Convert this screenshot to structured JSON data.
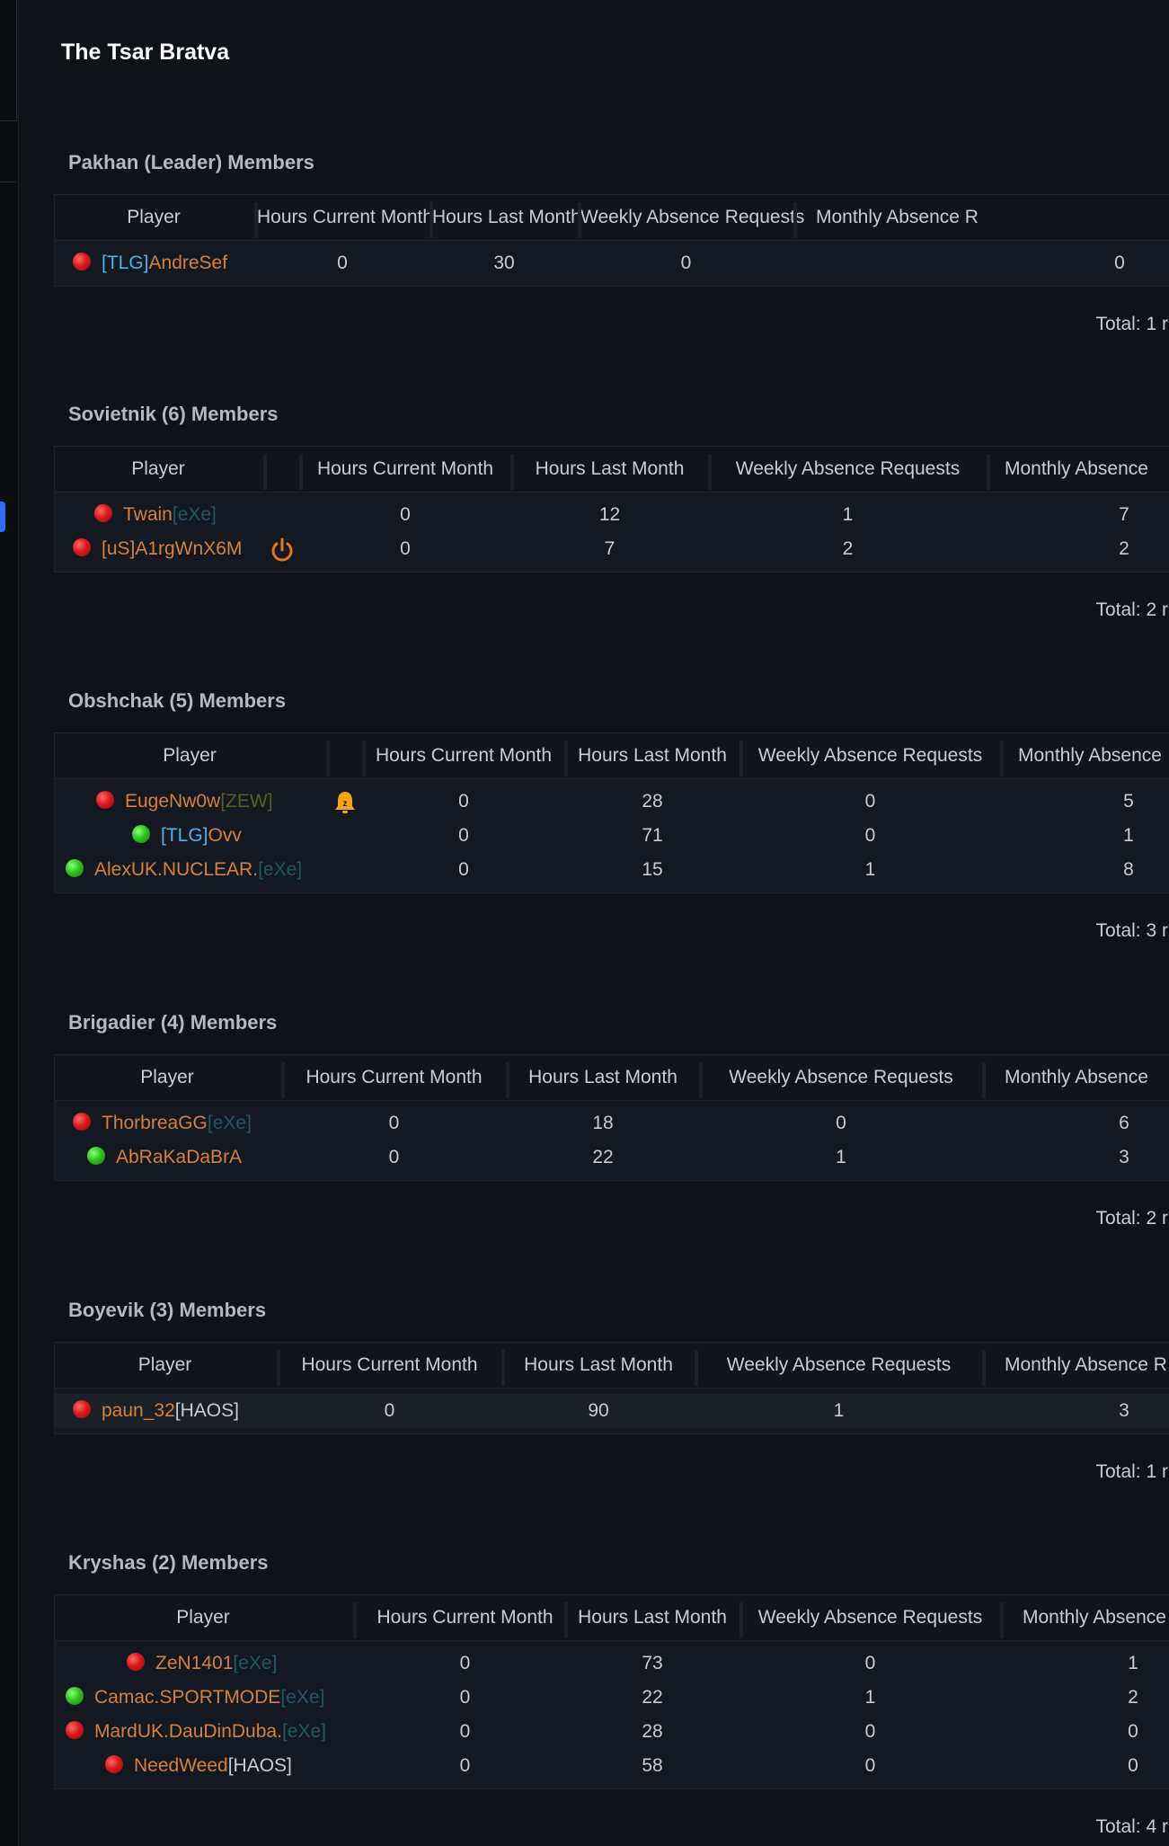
{
  "page_title": "The Tsar Bratva",
  "columns": {
    "player": "Player",
    "hours_current": "Hours Current Month",
    "hours_last": "Hours Last Month",
    "weekly": "Weekly Absence Requests",
    "monthly": "Monthly Absence"
  },
  "sections": [
    {
      "title": "Pakhan (Leader) Members",
      "monthly_header": "Monthly Absence R",
      "total": "Total: 1 r",
      "rows": [
        {
          "status": "red",
          "tag_pre": "[TLG]",
          "tag_pre_color": "blue",
          "name": "AndreSef",
          "tag_post": "",
          "tag_post_color": "",
          "current": "0",
          "last": "30",
          "weekly": "0",
          "monthly": "0",
          "icon": ""
        }
      ]
    },
    {
      "title": "Sovietnik (6) Members",
      "monthly_header": "Monthly Absence",
      "total": "Total: 2 r",
      "rows": [
        {
          "status": "red",
          "tag_pre": "",
          "tag_pre_color": "",
          "name": "Twain",
          "tag_post": "[eXe]",
          "tag_post_color": "teal",
          "current": "0",
          "last": "12",
          "weekly": "1",
          "monthly": "7",
          "icon": ""
        },
        {
          "status": "red",
          "tag_pre": "[uS]",
          "tag_pre_color": "red",
          "name": "A1rgWnX6M",
          "tag_post": "",
          "tag_post_color": "",
          "current": "0",
          "last": "7",
          "weekly": "2",
          "monthly": "2",
          "icon": "power-icon"
        }
      ]
    },
    {
      "title": "Obshchak (5) Members",
      "monthly_header": "Monthly Absence",
      "total": "Total: 3 r",
      "rows": [
        {
          "status": "red",
          "tag_pre": "",
          "tag_pre_color": "",
          "name": "EugeNw0w",
          "tag_post": "[ZEW]",
          "tag_post_color": "olive",
          "current": "0",
          "last": "28",
          "weekly": "0",
          "monthly": "5",
          "icon": "bell-icon"
        },
        {
          "status": "green",
          "tag_pre": "[TLG]",
          "tag_pre_color": "blue",
          "name": "Ovv",
          "tag_post": "",
          "tag_post_color": "",
          "current": "0",
          "last": "71",
          "weekly": "0",
          "monthly": "1",
          "icon": ""
        },
        {
          "status": "green",
          "tag_pre": "",
          "tag_pre_color": "",
          "name": "AlexUK.NUCLEAR.",
          "tag_post": "[eXe]",
          "tag_post_color": "teal",
          "current": "0",
          "last": "15",
          "weekly": "1",
          "monthly": "8",
          "icon": ""
        }
      ]
    },
    {
      "title": "Brigadier (4) Members",
      "monthly_header": "Monthly Absence",
      "total": "Total: 2 r",
      "rows": [
        {
          "status": "red",
          "tag_pre": "",
          "tag_pre_color": "",
          "name": "ThorbreaGG",
          "tag_post": "[eXe]",
          "tag_post_color": "teal",
          "current": "0",
          "last": "18",
          "weekly": "0",
          "monthly": "6",
          "icon": ""
        },
        {
          "status": "green",
          "tag_pre": "",
          "tag_pre_color": "",
          "name": "AbRaKaDaBrA",
          "tag_post": "",
          "tag_post_color": "",
          "current": "0",
          "last": "22",
          "weekly": "1",
          "monthly": "3",
          "icon": ""
        }
      ]
    },
    {
      "title": "Boyevik (3) Members",
      "monthly_header": "Monthly Absence R",
      "total": "Total: 1 r",
      "rows": [
        {
          "status": "red",
          "tag_pre": "",
          "tag_pre_color": "",
          "name": "paun_32",
          "tag_post": "[HAOS]",
          "tag_post_color": "white",
          "current": "0",
          "last": "90",
          "weekly": "1",
          "monthly": "3",
          "icon": ""
        }
      ]
    },
    {
      "title": "Kryshas (2) Members",
      "monthly_header": "Monthly Absence",
      "total": "Total: 4 r",
      "rows": [
        {
          "status": "red",
          "tag_pre": "",
          "tag_pre_color": "",
          "name": "ZeN1401",
          "tag_post": "[eXe]",
          "tag_post_color": "teal",
          "current": "0",
          "last": "73",
          "weekly": "0",
          "monthly": "1",
          "icon": ""
        },
        {
          "status": "green",
          "tag_pre": "",
          "tag_pre_color": "",
          "name": "Camac.SPORTMODE",
          "tag_post": "[eXe]",
          "tag_post_color": "teal",
          "current": "0",
          "last": "22",
          "weekly": "1",
          "monthly": "2",
          "icon": ""
        },
        {
          "status": "red",
          "tag_pre": "",
          "tag_pre_color": "",
          "name": "MardUK.DauDinDuba.",
          "tag_post": "[eXe]",
          "tag_post_color": "teal",
          "current": "0",
          "last": "28",
          "weekly": "0",
          "monthly": "0",
          "icon": ""
        },
        {
          "status": "red",
          "tag_pre": "",
          "tag_pre_color": "",
          "name": "NeedWeed",
          "tag_post": "[HAOS]",
          "tag_post_color": "white",
          "current": "0",
          "last": "58",
          "weekly": "0",
          "monthly": "0",
          "icon": ""
        }
      ]
    }
  ]
}
